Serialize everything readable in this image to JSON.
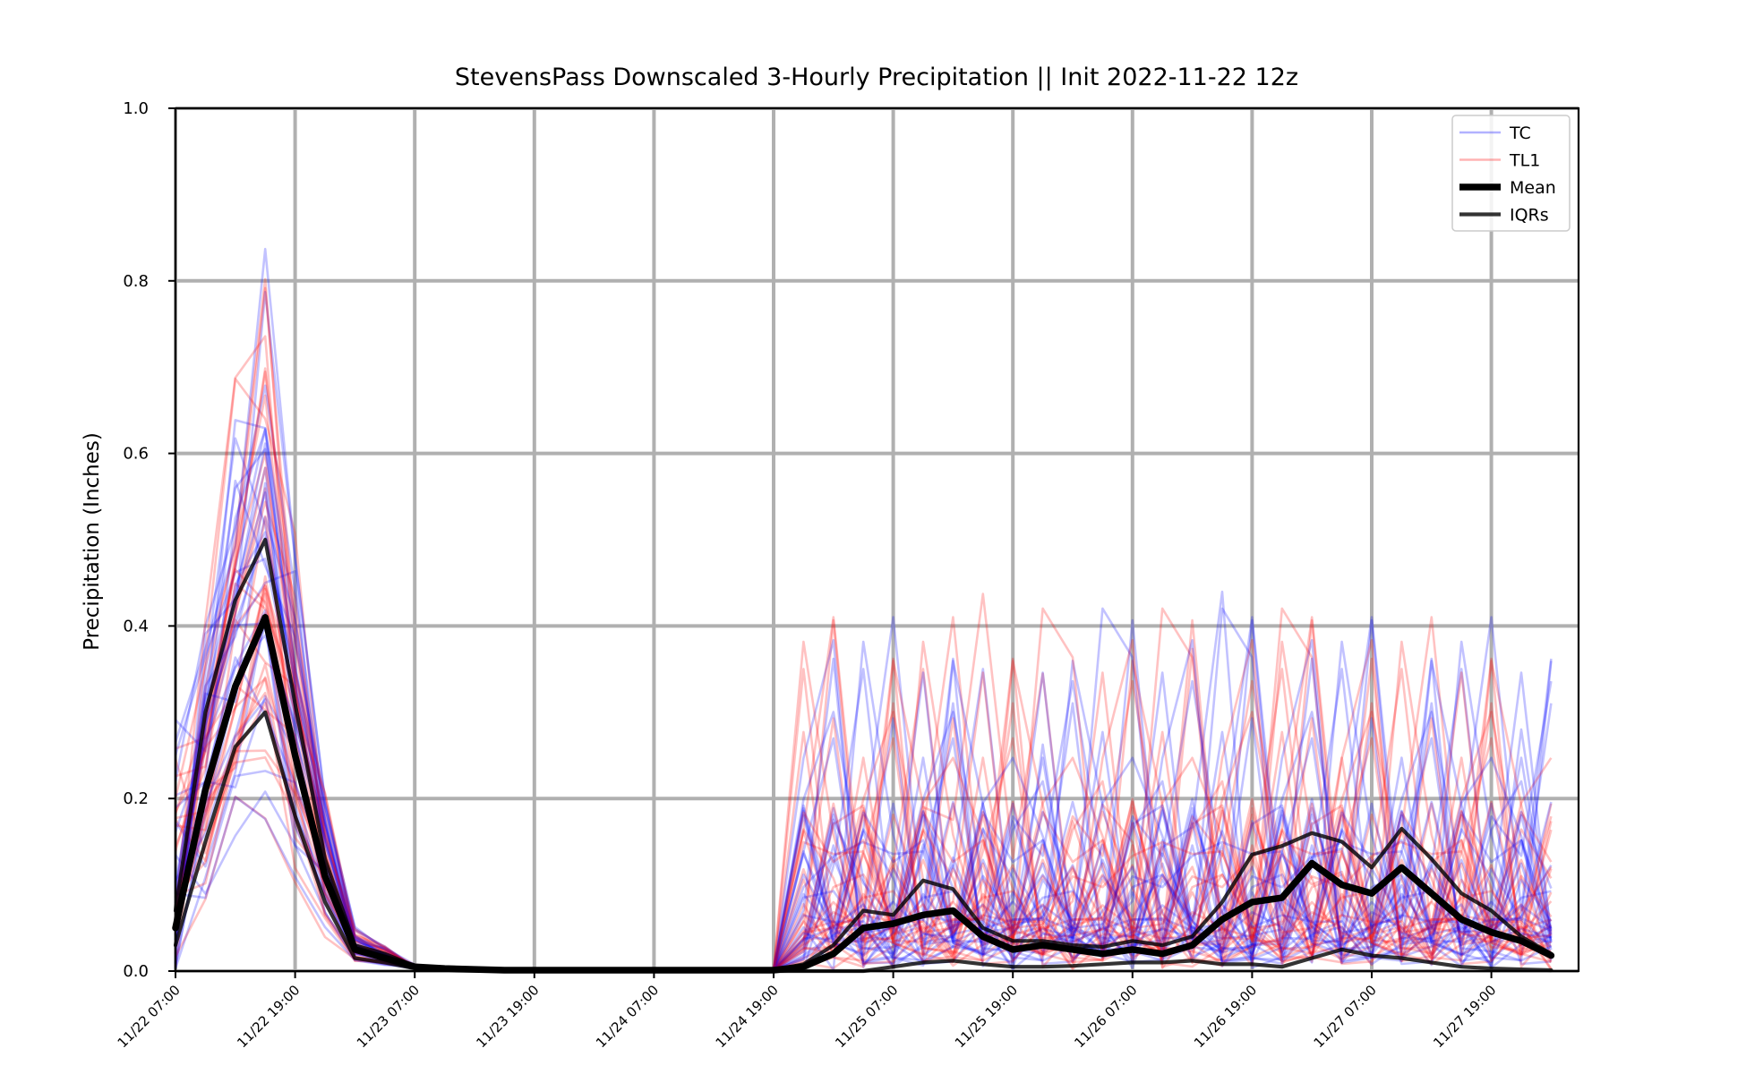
{
  "chart_data": {
    "type": "line",
    "title": "StevensPass Downscaled 3-Hourly Precipitation || Init 2022-11-22 12z",
    "xlabel": "",
    "ylabel": "Precipitation (Inches)",
    "ylim": [
      0.0,
      1.0
    ],
    "yticks": [
      "0.0",
      "0.2",
      "0.4",
      "0.6",
      "0.8",
      "1.0"
    ],
    "xticks": [
      "11/22 07:00",
      "11/22 19:00",
      "11/23 07:00",
      "11/23 19:00",
      "11/24 07:00",
      "11/24 19:00",
      "11/25 07:00",
      "11/25 19:00",
      "11/26 07:00",
      "11/26 19:00",
      "11/27 07:00",
      "11/27 19:00"
    ],
    "x_start": "11/22 07:00",
    "x_step_hours": 3,
    "grid": true,
    "legend_position": "top-right",
    "legend": [
      {
        "label": "TC",
        "color": "#0000ff",
        "style": "thin-translucent"
      },
      {
        "label": "TL1",
        "color": "#ff0000",
        "style": "thin-translucent"
      },
      {
        "label": "Mean",
        "color": "#000000",
        "style": "thick"
      },
      {
        "label": "IQRs",
        "color": "#000000",
        "style": "medium"
      }
    ],
    "series": [
      {
        "name": "Mean",
        "color": "#000000",
        "values": [
          0.05,
          0.21,
          0.33,
          0.41,
          0.25,
          0.11,
          0.025,
          0.015,
          0.005,
          0.003,
          0.002,
          0.001,
          0.001,
          0.001,
          0.001,
          0.001,
          0.001,
          0.001,
          0.001,
          0.001,
          0.001,
          0.005,
          0.02,
          0.05,
          0.055,
          0.065,
          0.07,
          0.04,
          0.025,
          0.03,
          0.025,
          0.02,
          0.025,
          0.02,
          0.03,
          0.06,
          0.08,
          0.085,
          0.125,
          0.1,
          0.09,
          0.12,
          0.09,
          0.06,
          0.045,
          0.035,
          0.018
        ]
      },
      {
        "name": "IQR upper",
        "color": "#000000",
        "values": [
          0.07,
          0.3,
          0.43,
          0.5,
          0.31,
          0.13,
          0.03,
          0.02,
          0.006,
          0.004,
          0.003,
          0.002,
          0.001,
          0.001,
          0.001,
          0.001,
          0.001,
          0.001,
          0.001,
          0.001,
          0.001,
          0.008,
          0.03,
          0.07,
          0.065,
          0.105,
          0.095,
          0.05,
          0.035,
          0.035,
          0.03,
          0.028,
          0.035,
          0.03,
          0.04,
          0.08,
          0.135,
          0.145,
          0.16,
          0.15,
          0.12,
          0.165,
          0.13,
          0.09,
          0.07,
          0.04,
          0.02
        ]
      },
      {
        "name": "IQR lower",
        "color": "#000000",
        "values": [
          0.03,
          0.15,
          0.26,
          0.3,
          0.18,
          0.08,
          0.015,
          0.01,
          0.003,
          0.002,
          0.001,
          0.0,
          0.0,
          0.0,
          0.0,
          0.0,
          0.0,
          0.0,
          0.0,
          0.0,
          0.0,
          0.0,
          0.0,
          0.0,
          0.005,
          0.01,
          0.012,
          0.008,
          0.005,
          0.005,
          0.006,
          0.008,
          0.01,
          0.01,
          0.012,
          0.008,
          0.008,
          0.005,
          0.015,
          0.025,
          0.018,
          0.015,
          0.01,
          0.005,
          0.003,
          0.002,
          0.001
        ]
      }
    ]
  }
}
